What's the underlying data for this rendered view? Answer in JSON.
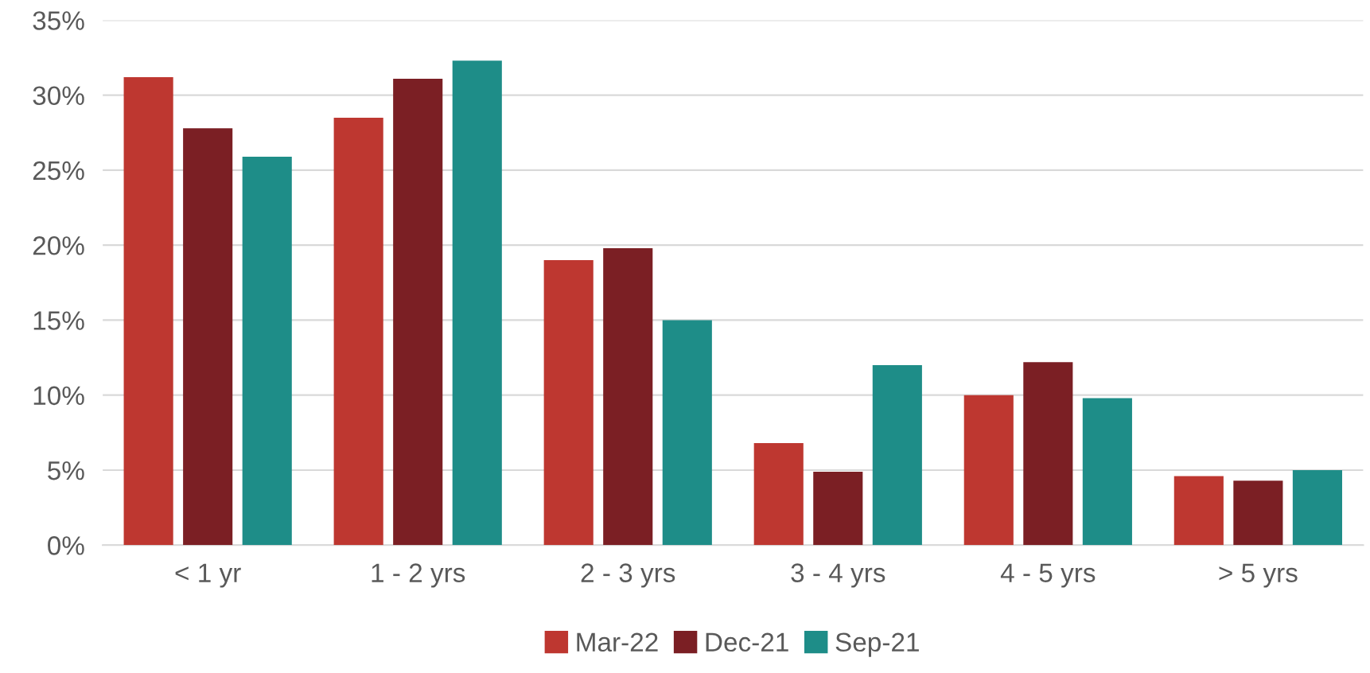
{
  "chart_data": {
    "type": "bar",
    "categories": [
      "< 1 yr",
      "1 - 2 yrs",
      "2 - 3 yrs",
      "3 - 4 yrs",
      "4 - 5 yrs",
      "> 5 yrs"
    ],
    "series": [
      {
        "name": "Mar-22",
        "color": "#be3730",
        "values": [
          31.2,
          28.5,
          19.0,
          6.8,
          10.0,
          4.6
        ]
      },
      {
        "name": "Dec-21",
        "color": "#7b1f24",
        "values": [
          27.8,
          31.1,
          19.8,
          4.9,
          12.2,
          4.3
        ]
      },
      {
        "name": "Sep-21",
        "color": "#1e8d88",
        "values": [
          25.9,
          32.3,
          15.0,
          12.0,
          9.8,
          5.0
        ]
      }
    ],
    "ylim": [
      0,
      35
    ],
    "yticks": [
      {
        "value": 0,
        "label": "0%"
      },
      {
        "value": 5,
        "label": "5%"
      },
      {
        "value": 10,
        "label": "10%"
      },
      {
        "value": 15,
        "label": "15%"
      },
      {
        "value": 20,
        "label": "20%"
      },
      {
        "value": 25,
        "label": "25%"
      },
      {
        "value": 30,
        "label": "30%"
      },
      {
        "value": 35,
        "label": "35%"
      }
    ],
    "grid": "y",
    "legend": "bottom"
  }
}
